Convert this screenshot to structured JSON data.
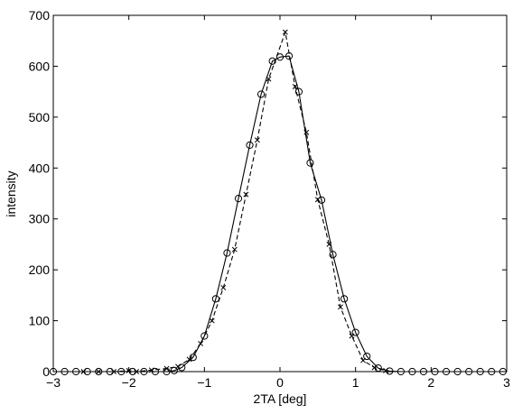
{
  "chart_data": {
    "type": "line",
    "title": "",
    "xlabel": "2TA [deg]",
    "ylabel": "intensity",
    "xlim": [
      -3,
      3
    ],
    "ylim": [
      0,
      700
    ],
    "xticks": [
      -3,
      -2,
      -1,
      0,
      1,
      2,
      3
    ],
    "xtick_labels": [
      "−3",
      "−2",
      "−1",
      "0",
      "1",
      "2",
      "3"
    ],
    "yticks": [
      0,
      100,
      200,
      300,
      400,
      500,
      600,
      700
    ],
    "ytick_labels": [
      "0",
      "100",
      "200",
      "300",
      "400",
      "500",
      "600",
      "700"
    ],
    "grid": false,
    "legend": "none",
    "series": [
      {
        "style": "solid",
        "marker": "circle",
        "color": "#000000",
        "x": [
          -3.0,
          -2.85,
          -2.7,
          -2.55,
          -2.4,
          -2.25,
          -2.1,
          -1.95,
          -1.8,
          -1.65,
          -1.5,
          -1.4,
          -1.3,
          -1.15,
          -1.0,
          -0.85,
          -0.7,
          -0.55,
          -0.4,
          -0.25,
          -0.1,
          0.0,
          0.12,
          0.25,
          0.4,
          0.55,
          0.7,
          0.85,
          1.0,
          1.15,
          1.3,
          1.45,
          1.6,
          1.75,
          1.9,
          2.05,
          2.2,
          2.35,
          2.5,
          2.65,
          2.8,
          2.95
        ],
        "y": [
          0,
          0,
          0,
          0,
          0,
          0,
          0,
          0,
          0,
          0,
          0,
          2,
          8,
          28,
          70,
          143,
          233,
          340,
          445,
          545,
          610,
          618,
          620,
          550,
          410,
          337,
          230,
          143,
          77,
          30,
          7,
          1,
          0,
          0,
          0,
          0,
          0,
          0,
          0,
          0,
          0,
          0
        ]
      },
      {
        "style": "dashed",
        "marker": "x",
        "color": "#000000",
        "x": [
          -2.6,
          -2.4,
          -2.2,
          -2.0,
          -1.9,
          -1.7,
          -1.5,
          -1.35,
          -1.2,
          -1.05,
          -0.9,
          -0.75,
          -0.6,
          -0.45,
          -0.3,
          -0.15,
          0.07,
          0.2,
          0.35,
          0.5,
          0.65,
          0.8,
          0.95,
          1.1,
          1.25,
          1.4
        ],
        "y": [
          0,
          0,
          0,
          2,
          0,
          3,
          6,
          10,
          24,
          55,
          100,
          165,
          240,
          348,
          455,
          575,
          667,
          560,
          470,
          338,
          250,
          127,
          70,
          22,
          8,
          2
        ]
      }
    ]
  }
}
